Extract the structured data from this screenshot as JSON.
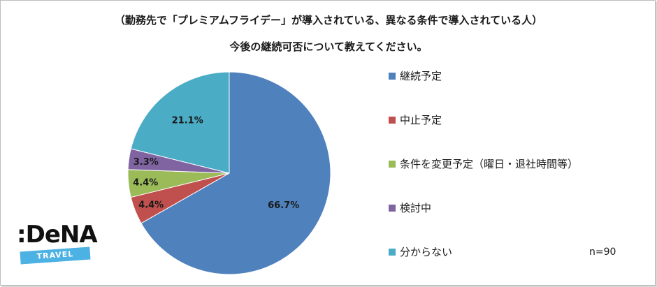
{
  "title_line1": "（勤務先で「プレミアムフライデー」が導入されている、異なる条件で導入されている人）",
  "title_line2": "今後の継続可否について教えてください。",
  "note": "n=90",
  "logo": {
    "wordmark": ":DeNA",
    "band": "TRAVEL"
  },
  "chart_data": {
    "type": "pie",
    "title": "（勤務先で「プレミアムフライデー」が導入されている、異なる条件で導入されている人）今後の継続可否について教えてください。",
    "unit": "%",
    "slices": [
      {
        "label": "継続予定",
        "value": 66.7,
        "display": "66.7%",
        "color": "#4f81bd"
      },
      {
        "label": "中止予定",
        "value": 4.4,
        "display": "4.4%",
        "color": "#c0504d"
      },
      {
        "label": "条件を変更予定（曜日・退社時間等）",
        "value": 4.4,
        "display": "4.4%",
        "color": "#9bbb59"
      },
      {
        "label": "検討中",
        "value": 3.3,
        "display": "3.3%",
        "color": "#8064a2"
      },
      {
        "label": "分からない",
        "value": 21.1,
        "display": "21.1%",
        "color": "#4bacc6"
      }
    ],
    "start": "12 o'clock",
    "direction": "clockwise",
    "legend_position": "right"
  }
}
